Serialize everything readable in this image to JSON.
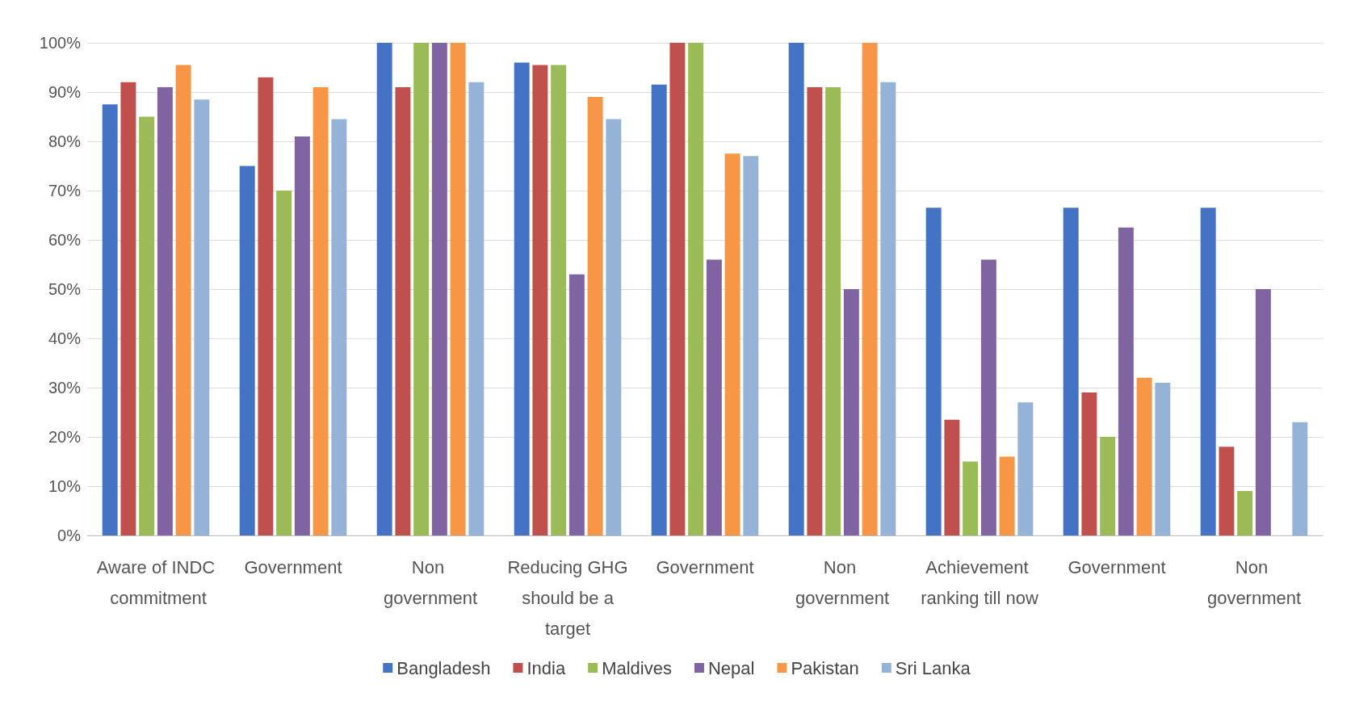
{
  "chart_data": {
    "type": "bar",
    "categories": [
      "Aware of INDC commitment",
      "Government",
      "Non government",
      "Reducing GHG should be a target",
      "Government",
      "Non government",
      "Achievement ranking till now",
      "Government",
      "Non government"
    ],
    "series": [
      {
        "name": "Bangladesh",
        "color": "#4472c4",
        "values": [
          87.5,
          75,
          100,
          96,
          91.5,
          100,
          66.5,
          66.5,
          66.5
        ]
      },
      {
        "name": "India",
        "color": "#c0504d",
        "values": [
          92,
          93,
          91,
          95.5,
          100,
          91,
          23.5,
          29,
          18
        ]
      },
      {
        "name": "Maldives",
        "color": "#9bbb59",
        "values": [
          85,
          70,
          100,
          95.5,
          100,
          91,
          15,
          20,
          9
        ]
      },
      {
        "name": "Nepal",
        "color": "#8064a2",
        "values": [
          91,
          81,
          100,
          53,
          56,
          50,
          56,
          62.5,
          50
        ]
      },
      {
        "name": "Pakistan",
        "color": "#f79646",
        "values": [
          95.5,
          91,
          100,
          89,
          77.5,
          100,
          16,
          32,
          0
        ]
      },
      {
        "name": "Sri Lanka",
        "color": "#95b3d7",
        "values": [
          88.5,
          84.5,
          92,
          84.5,
          77,
          92,
          27,
          31,
          23
        ]
      }
    ],
    "ylim": [
      0,
      100
    ],
    "yticks": [
      {
        "value": 0,
        "label": "0%"
      },
      {
        "value": 10,
        "label": "10%"
      },
      {
        "value": 20,
        "label": "20%"
      },
      {
        "value": 30,
        "label": "30%"
      },
      {
        "value": 40,
        "label": "40%"
      },
      {
        "value": 50,
        "label": "50%"
      },
      {
        "value": 60,
        "label": "60%"
      },
      {
        "value": 70,
        "label": "70%"
      },
      {
        "value": 80,
        "label": "80%"
      },
      {
        "value": 90,
        "label": "90%"
      },
      {
        "value": 100,
        "label": "100%"
      }
    ],
    "grid": "y",
    "legend": "bottom"
  }
}
